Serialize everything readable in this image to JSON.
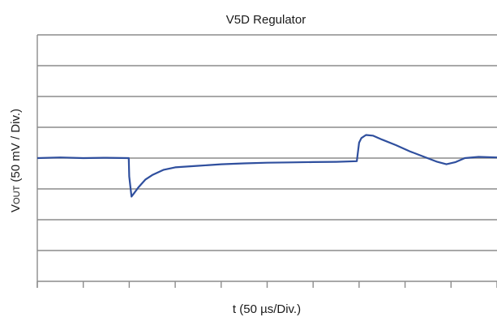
{
  "chart_data": {
    "type": "line",
    "title": "V5D Regulator",
    "xlabel": "t (50 µs/Div.)",
    "ylabel": {
      "main": "V",
      "sub": "OUT",
      "rest": " (50 mV / Div.)"
    },
    "x_divisions": 10,
    "y_divisions": 8,
    "xlim": [
      0,
      10
    ],
    "ylim": [
      -4,
      4
    ],
    "grid": true,
    "colors": {
      "trace": "#2f4f9e",
      "grid": "#8c8c8c"
    },
    "series": [
      {
        "x": [
          0,
          0.5,
          1,
          1.5,
          1.99,
          2.0,
          2.05,
          2.1,
          2.2,
          2.35,
          2.5,
          2.75,
          3.0,
          3.5,
          4.0,
          4.5,
          5.0,
          5.5,
          6.0,
          6.5,
          6.95,
          7.0,
          7.05,
          7.15,
          7.3,
          7.5,
          7.8,
          8.1,
          8.4,
          8.7,
          8.9,
          9.1,
          9.3,
          9.6,
          10
        ],
        "y": [
          0.0,
          0.02,
          0.0,
          0.01,
          0.0,
          -0.6,
          -1.25,
          -1.15,
          -0.95,
          -0.7,
          -0.55,
          -0.38,
          -0.3,
          -0.25,
          -0.2,
          -0.17,
          -0.15,
          -0.14,
          -0.13,
          -0.12,
          -0.1,
          0.5,
          0.65,
          0.75,
          0.73,
          0.6,
          0.42,
          0.22,
          0.05,
          -0.12,
          -0.2,
          -0.13,
          0.0,
          0.04,
          0.02
        ]
      }
    ]
  }
}
